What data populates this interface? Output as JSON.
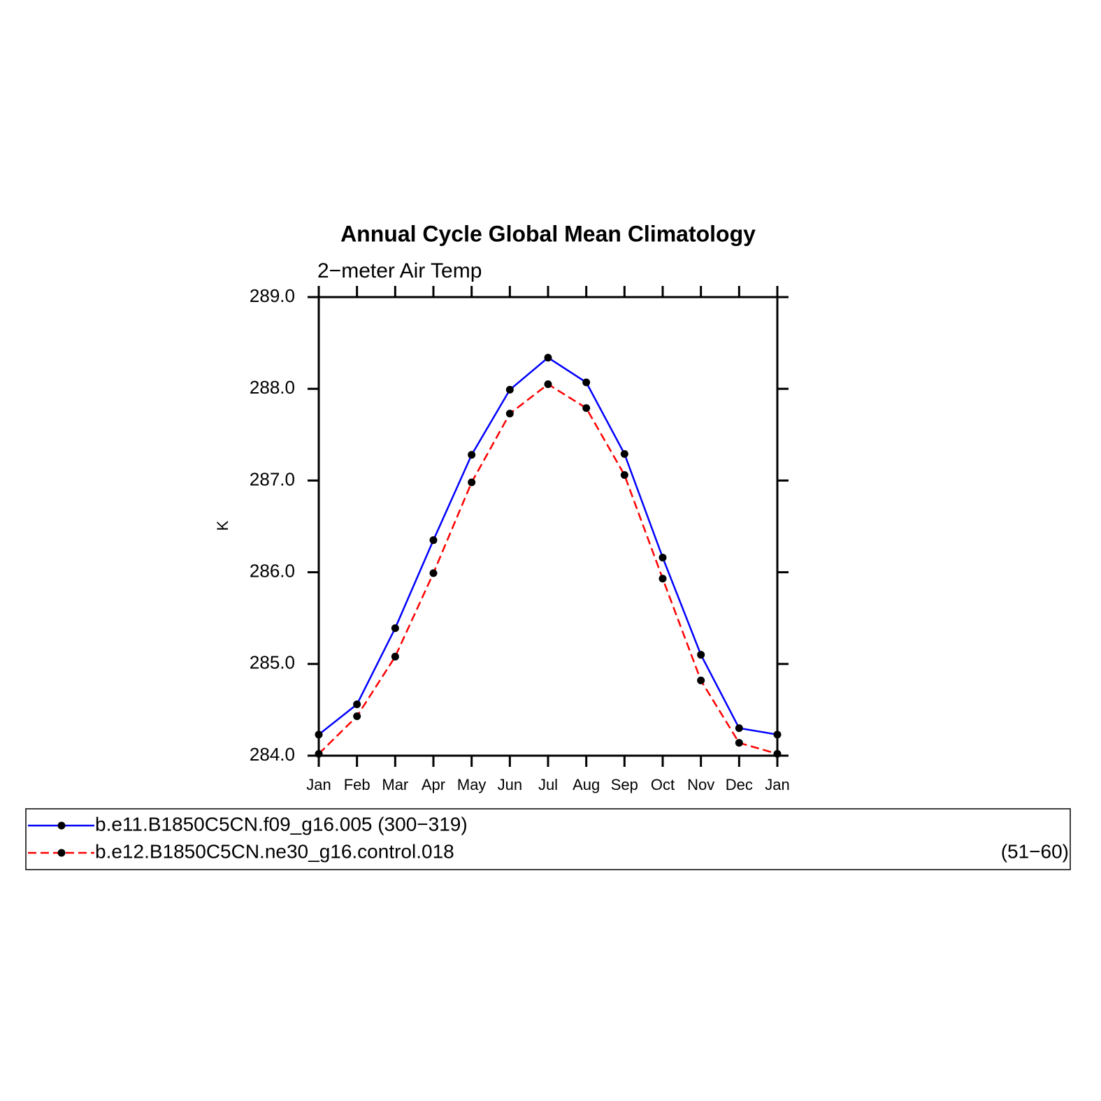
{
  "chart_data": {
    "type": "line",
    "title": "Annual Cycle Global Mean Climatology",
    "subtitle": "2−meter Air Temp",
    "y_label": "K",
    "categories": [
      "Jan",
      "Feb",
      "Mar",
      "Apr",
      "May",
      "Jun",
      "Jul",
      "Aug",
      "Sep",
      "Oct",
      "Nov",
      "Dec",
      "Jan"
    ],
    "ylim": [
      284.0,
      289.0
    ],
    "yticks": [
      {
        "value": 284,
        "label": "284.0"
      },
      {
        "value": 285,
        "label": "285.0"
      },
      {
        "value": 286,
        "label": "286.0"
      },
      {
        "value": 287,
        "label": "287.0"
      },
      {
        "value": 288,
        "label": "288.0"
      },
      {
        "value": 289,
        "label": "289.0"
      }
    ],
    "series": [
      {
        "name": "b.e11.B1850C5CN.f09_g16.005 (300−319)",
        "color": "#0000ff",
        "dash": false,
        "values": [
          284.23,
          284.56,
          285.39,
          286.35,
          287.28,
          287.99,
          288.34,
          288.07,
          287.29,
          286.16,
          285.1,
          284.3,
          284.23
        ]
      },
      {
        "name": "b.e12.B1850C5CN.ne30_g16.control.018",
        "legend_note": "(51−60)",
        "color": "#ff0000",
        "dash": true,
        "values": [
          284.02,
          284.43,
          285.08,
          285.99,
          286.98,
          287.73,
          288.05,
          287.79,
          287.06,
          285.93,
          284.82,
          284.14,
          284.02
        ]
      }
    ]
  }
}
